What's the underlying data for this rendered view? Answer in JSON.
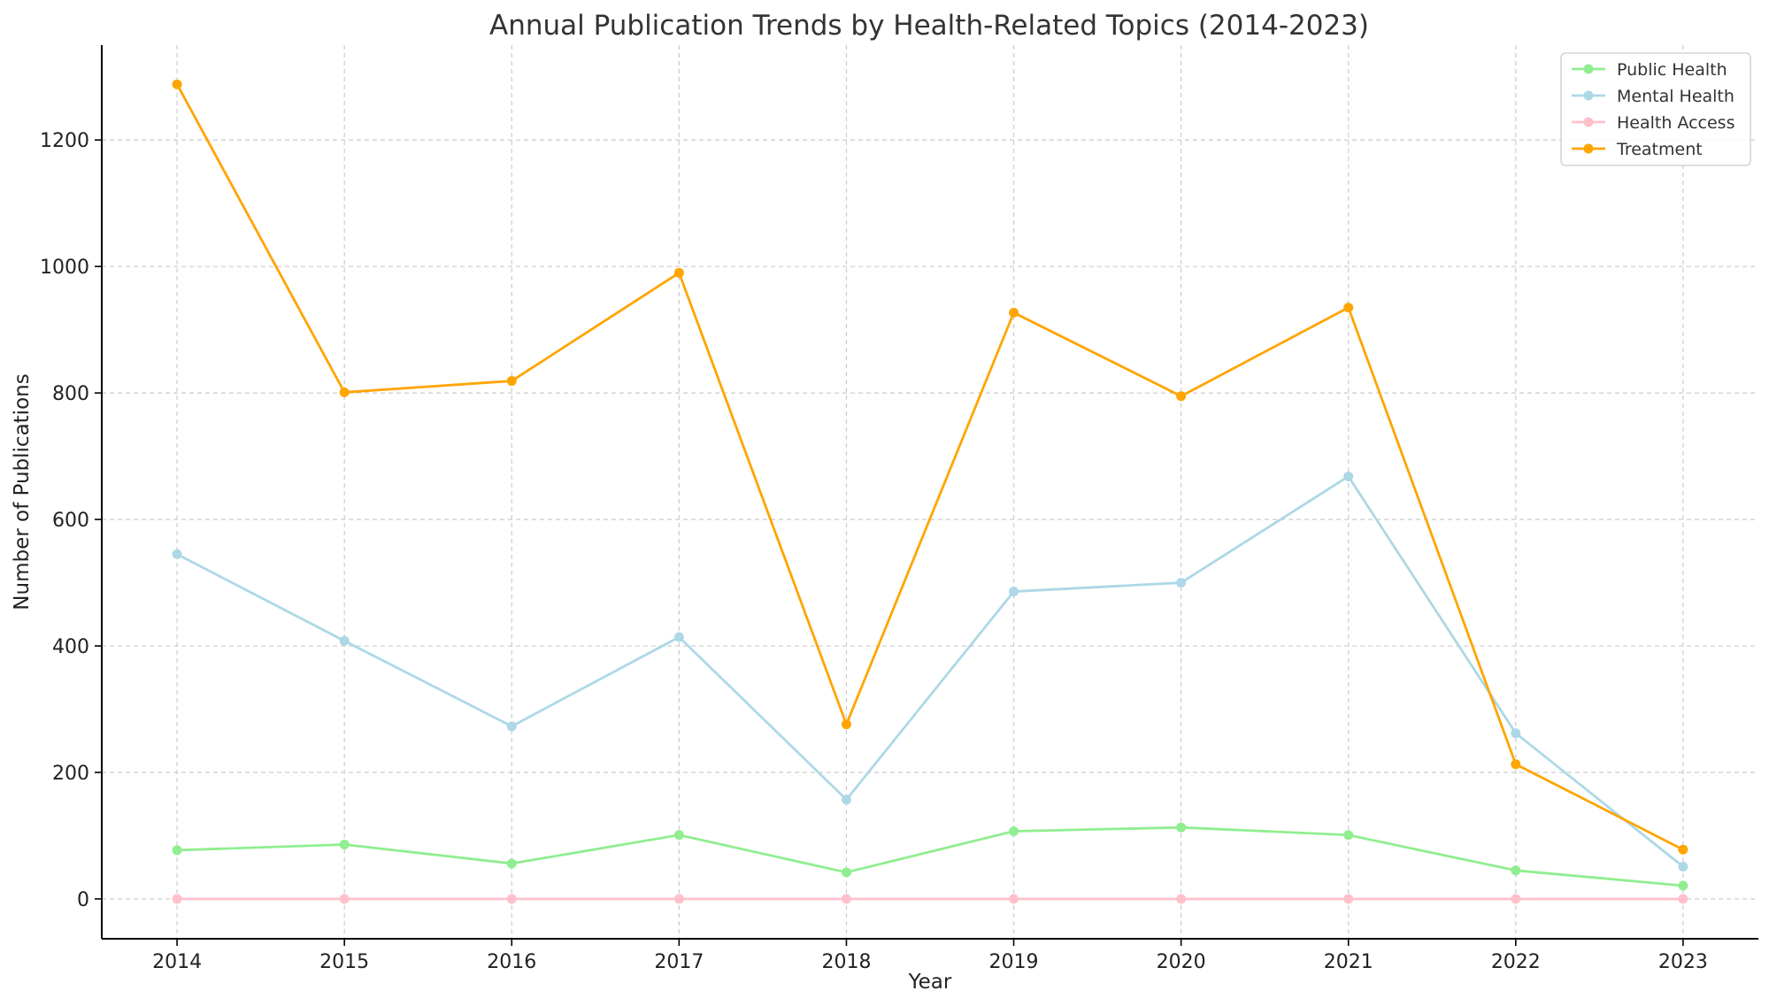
{
  "chart_data": {
    "type": "line",
    "title": "Annual Publication Trends by Health-Related Topics (2014-2023)",
    "xlabel": "Year",
    "ylabel": "Number of Publications",
    "x": [
      2014,
      2015,
      2016,
      2017,
      2018,
      2019,
      2020,
      2021,
      2022,
      2023
    ],
    "xlim": [
      2013.55,
      2023.45
    ],
    "ylim": [
      -63,
      1350
    ],
    "yticks": [
      0,
      200,
      400,
      600,
      800,
      1000,
      1200
    ],
    "grid": true,
    "legend_position": "top-right",
    "series": [
      {
        "name": "Public Health",
        "color": "#90EE90",
        "values": [
          77,
          86,
          56,
          101,
          42,
          107,
          113,
          101,
          45,
          21
        ]
      },
      {
        "name": "Mental Health",
        "color": "#ADD8E6",
        "values": [
          545,
          408,
          273,
          414,
          157,
          486,
          500,
          668,
          262,
          51
        ]
      },
      {
        "name": "Health Access",
        "color": "#FFC0CB",
        "values": [
          0,
          0,
          0,
          0,
          0,
          0,
          0,
          0,
          0,
          0
        ]
      },
      {
        "name": "Treatment",
        "color": "#FFA500",
        "values": [
          1288,
          801,
          819,
          990,
          276,
          927,
          795,
          935,
          213,
          78
        ]
      }
    ]
  }
}
